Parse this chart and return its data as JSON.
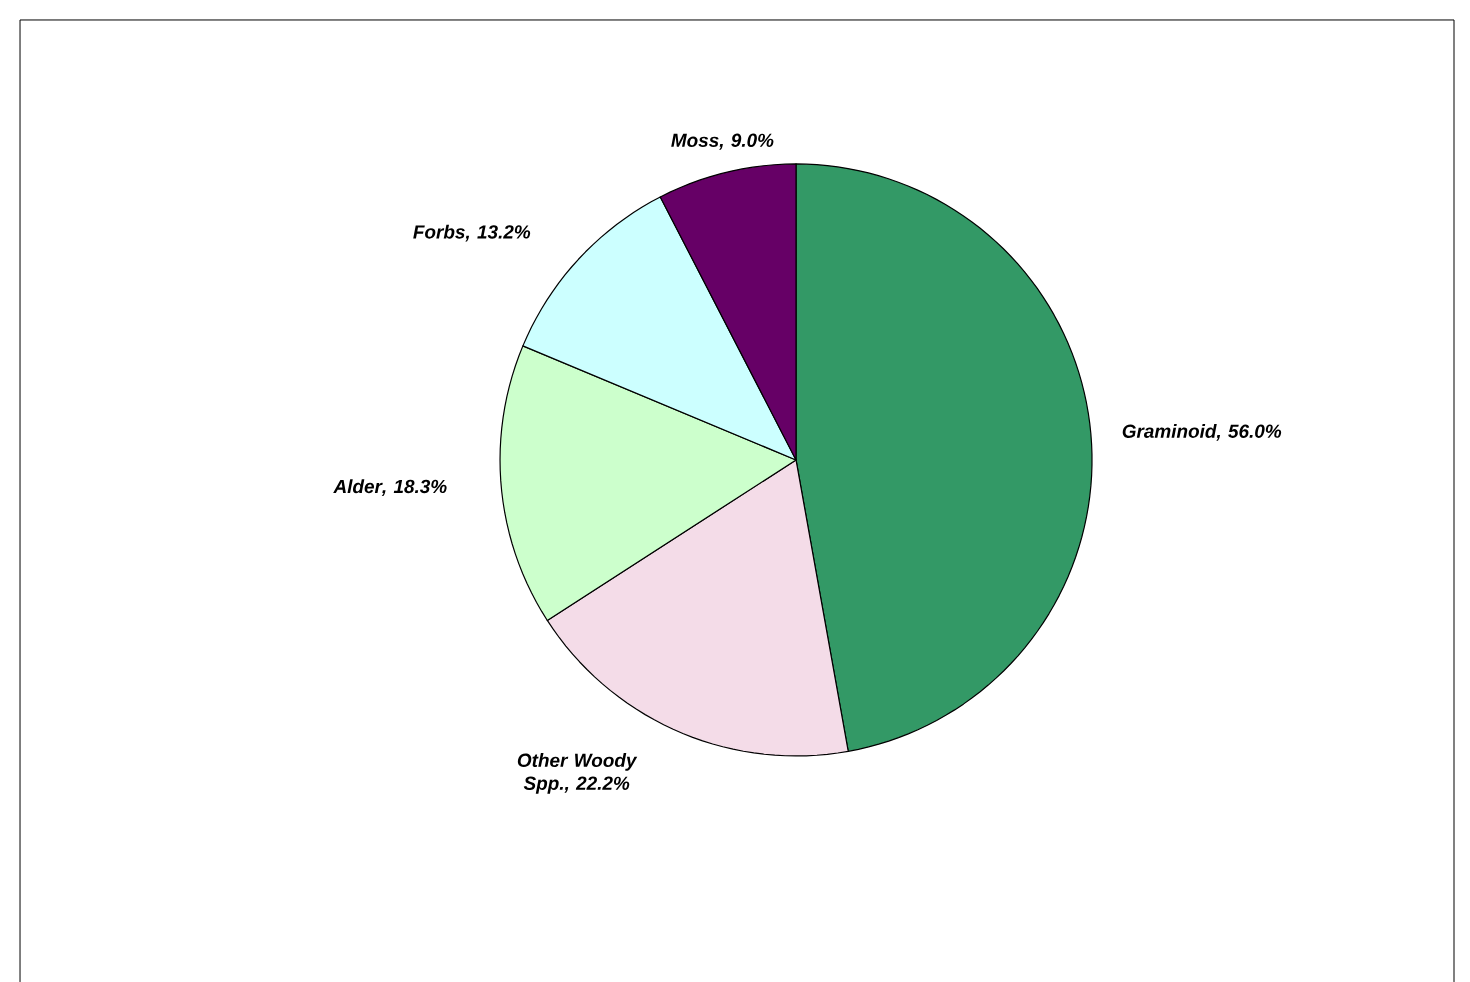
{
  "chart_data": {
    "type": "pie",
    "categories": [
      "Graminoid",
      "Other Woody Spp.",
      "Alder",
      "Forbs",
      "Moss"
    ],
    "values": [
      56.0,
      22.2,
      18.3,
      13.2,
      9.0
    ],
    "value_labels": [
      ", 56.0%",
      ", 22.2%",
      ", 18.3%",
      ", 13.2%",
      ", 9.0%"
    ],
    "colors": [
      "#339966",
      "#f4dce8",
      "#ccffcc",
      "#ccffff",
      "#660066"
    ]
  }
}
